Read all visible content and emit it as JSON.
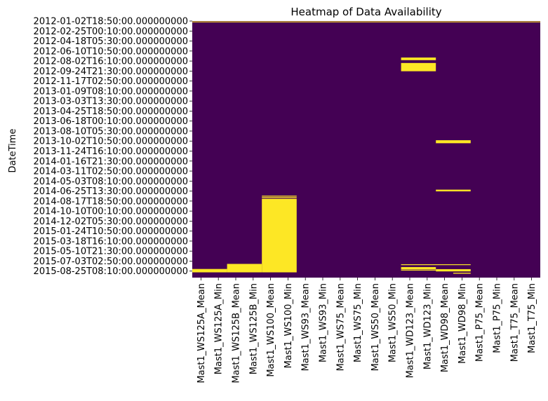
{
  "chart_data": {
    "type": "heatmap",
    "title": "Heatmap of Data Availability",
    "xlabel": "",
    "ylabel": "DateTime",
    "colormap": {
      "missing": "#fde725",
      "present": "#440154"
    },
    "colorbar": false,
    "columns": [
      "Mast1_WS125A_Mean",
      "Mast1_WS125A_Min",
      "Mast1_WS125B_Mean",
      "Mast1_WS125B_Min",
      "Mast1_WS100_Mean",
      "Mast1_WS100_Min",
      "Mast1_WS93_Mean",
      "Mast1_WS93_Min",
      "Mast1_WS75_Mean",
      "Mast1_WS75_Min",
      "Mast1_WS50_Mean",
      "Mast1_WS50_Min",
      "Mast1_WD123_Mean",
      "Mast1_WD123_Min",
      "Mast1_WD98_Mean",
      "Mast1_WD98_Min",
      "Mast1_P75_Mean",
      "Mast1_P75_Min",
      "Mast1_T75_Mean",
      "Mast1_T75_Min"
    ],
    "y_tick_labels": [
      "2012-01-02T18:50:00.000000000",
      "2012-02-25T00:10:00.000000000",
      "2012-04-18T05:30:00.000000000",
      "2012-06-10T10:50:00.000000000",
      "2012-08-02T16:10:00.000000000",
      "2012-09-24T21:30:00.000000000",
      "2012-11-17T02:50:00.000000000",
      "2013-01-09T08:10:00.000000000",
      "2013-03-03T13:30:00.000000000",
      "2013-04-25T18:50:00.000000000",
      "2013-06-18T00:10:00.000000000",
      "2013-08-10T05:30:00.000000000",
      "2013-10-02T10:50:00.000000000",
      "2013-11-24T16:10:00.000000000",
      "2014-01-16T21:30:00.000000000",
      "2014-03-11T02:50:00.000000000",
      "2014-05-03T08:10:00.000000000",
      "2014-06-25T13:30:00.000000000",
      "2014-08-17T18:50:00.000000000",
      "2014-10-10T00:10:00.000000000",
      "2014-12-02T05:30:00.000000000",
      "2015-01-24T10:50:00.000000000",
      "2015-03-18T16:10:00.000000000",
      "2015-05-10T21:30:00.000000000",
      "2015-07-03T02:50:00.000000000",
      "2015-08-25T08:10:00.000000000"
    ],
    "y_range": [
      "2012-01-02T18:50:00",
      "2015-09-29T00:00:00"
    ],
    "missing_intervals": [
      {
        "columns": [
          0,
          1,
          2,
          3,
          4,
          5,
          6,
          7,
          8,
          9,
          10,
          11,
          12,
          13,
          14,
          15,
          16,
          17,
          18,
          19
        ],
        "start": "2012-01-05T00:00:00",
        "end": "2012-01-09T00:00:00"
      },
      {
        "columns": [
          0,
          1
        ],
        "start": "2015-08-14T00:00:00",
        "end": "2015-09-01T00:00:00"
      },
      {
        "columns": [
          2,
          3
        ],
        "start": "2015-07-18T00:00:00",
        "end": "2015-09-01T00:00:00"
      },
      {
        "columns": [
          4,
          5
        ],
        "start": "2014-07-20T00:00:00",
        "end": "2014-07-23T00:00:00"
      },
      {
        "columns": [
          4,
          5
        ],
        "start": "2014-07-27T00:00:00",
        "end": "2014-07-30T00:00:00"
      },
      {
        "columns": [
          4,
          5
        ],
        "start": "2014-08-05T00:00:00",
        "end": "2015-09-01T00:00:00"
      },
      {
        "columns": [
          12,
          13
        ],
        "start": "2012-07-15T00:00:00",
        "end": "2012-07-29T00:00:00"
      },
      {
        "columns": [
          12,
          13
        ],
        "start": "2012-08-13T00:00:00",
        "end": "2012-09-26T00:00:00"
      },
      {
        "columns": [
          14,
          15
        ],
        "start": "2013-09-28T00:00:00",
        "end": "2013-10-14T00:00:00"
      },
      {
        "columns": [
          14,
          15
        ],
        "start": "2014-06-18T00:00:00",
        "end": "2014-06-27T00:00:00"
      },
      {
        "columns": [
          12,
          13,
          14,
          15
        ],
        "start": "2015-07-20T00:00:00",
        "end": "2015-07-23T00:00:00"
      },
      {
        "columns": [
          12,
          13
        ],
        "start": "2015-08-04T00:00:00",
        "end": "2015-08-16T00:00:00"
      },
      {
        "columns": [
          12,
          13
        ],
        "start": "2015-08-18T00:00:00",
        "end": "2015-08-22T00:00:00"
      },
      {
        "columns": [
          14,
          15
        ],
        "start": "2015-08-15T00:00:00",
        "end": "2015-08-27T00:00:00"
      },
      {
        "columns": [
          15
        ],
        "start": "2015-09-03T00:00:00",
        "end": "2015-09-08T00:00:00"
      }
    ]
  }
}
